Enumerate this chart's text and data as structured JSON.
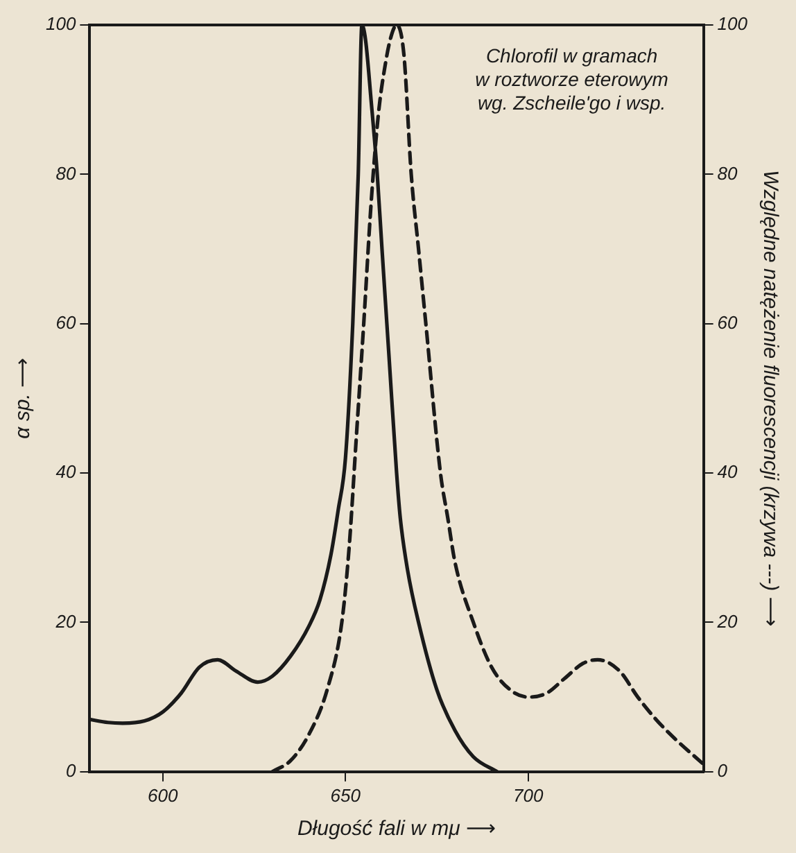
{
  "chart_data": {
    "type": "line",
    "xlabel": "Długość fali w mμ ⟶",
    "ylabel": "α sp. ⟶",
    "y2label": "Względne natężenie fluorescencji (krzywa ---) ⟶",
    "annotations": [
      "Chlorofil w gramach\nw roztworze eterowym\nwg. Zscheile'go i wsp."
    ],
    "xlim": [
      580,
      748
    ],
    "xticks": [
      600,
      650,
      700
    ],
    "ylim": [
      0,
      100
    ],
    "yticks": [
      0,
      20,
      40,
      60,
      80,
      100
    ],
    "y2lim": [
      0,
      100
    ],
    "y2ticks": [
      0,
      20,
      40,
      60,
      80,
      100
    ],
    "grid": false,
    "legend": false,
    "marker": "none",
    "series": [
      {
        "color": "#1a1a1a",
        "line_style": "solid",
        "x": [
          580,
          585,
          589,
          595,
          600,
          605,
          610,
          615,
          620,
          626,
          630,
          635,
          640,
          643,
          646,
          648,
          650,
          652,
          653.5,
          654.5,
          655.5,
          657,
          658.7,
          660,
          662,
          664,
          665,
          667,
          670,
          675,
          680,
          685,
          691.5
        ],
        "values": [
          7,
          6.6,
          6.5,
          6.8,
          8,
          10.5,
          14,
          15,
          13.5,
          12,
          12.8,
          15.5,
          19.5,
          23,
          29,
          35,
          42,
          60,
          80,
          100,
          98,
          90,
          80,
          70,
          55,
          40,
          34,
          27,
          20,
          11,
          5.5,
          2,
          0
        ]
      },
      {
        "color": "#1a1a1a",
        "line_style": "dashed",
        "axis": "y2",
        "x": [
          630,
          635,
          640,
          645,
          649,
          651,
          653,
          655,
          657,
          659,
          661,
          662.5,
          664,
          666,
          668,
          670,
          672,
          676,
          678,
          680,
          685,
          690,
          695,
          700,
          705,
          710,
          715,
          719,
          725,
          730,
          735,
          740,
          748
        ],
        "values": [
          0,
          1.5,
          5,
          11,
          20,
          30,
          45,
          60,
          76,
          88,
          95,
          98.5,
          100,
          96,
          80,
          70,
          60,
          40,
          34,
          28,
          20,
          14,
          11,
          10,
          10.5,
          12.5,
          14.5,
          15,
          13.5,
          10,
          7,
          4.5,
          1
        ]
      }
    ]
  }
}
